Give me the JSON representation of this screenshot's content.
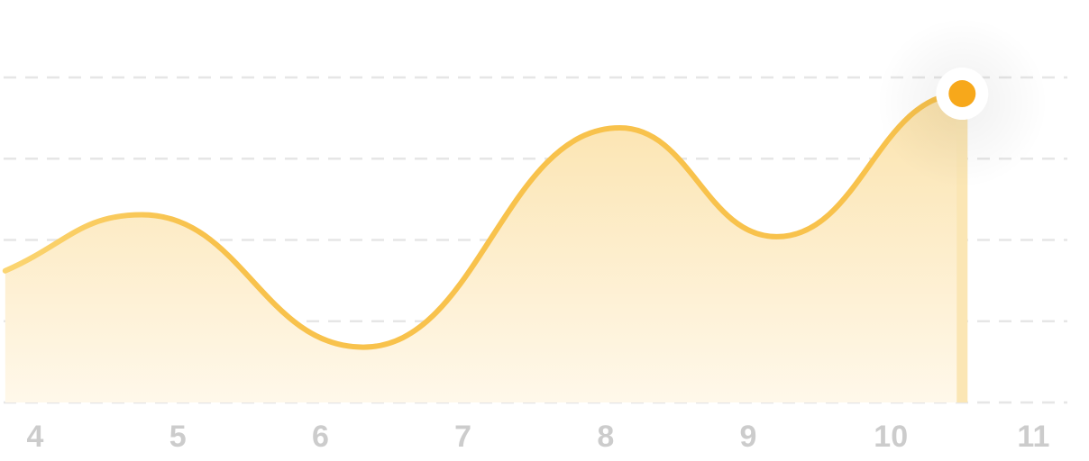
{
  "colors": {
    "line": "#F8C24C",
    "line_start": "#FBD572",
    "fill_top": "#FBE3AD",
    "fill_bottom": "#FFF8EA",
    "marker": "#F7A81B",
    "marker_ring": "#FFFFFF",
    "grid": "#E6E6E6",
    "tick_text": "#CCCCCC",
    "drop_line": "#FBE6B4"
  },
  "chart_data": {
    "type": "area",
    "title": "",
    "xlabel": "",
    "ylabel": "",
    "x_ticks": [
      4,
      5,
      6,
      7,
      8,
      9,
      10,
      11
    ],
    "xlim": [
      3.8,
      11.2
    ],
    "ylim": [
      0,
      4
    ],
    "grid": true,
    "y_gridlines": [
      0,
      1,
      2,
      3,
      4
    ],
    "series": [
      {
        "points": [
          [
            3.79,
            1.62
          ],
          [
            4.75,
            2.31
          ],
          [
            6.3,
            0.68
          ],
          [
            8.1,
            3.38
          ],
          [
            9.2,
            2.04
          ],
          [
            10.5,
            3.8
          ]
        ]
      }
    ],
    "highlight_point": {
      "x": 10.5,
      "y": 3.8
    }
  }
}
